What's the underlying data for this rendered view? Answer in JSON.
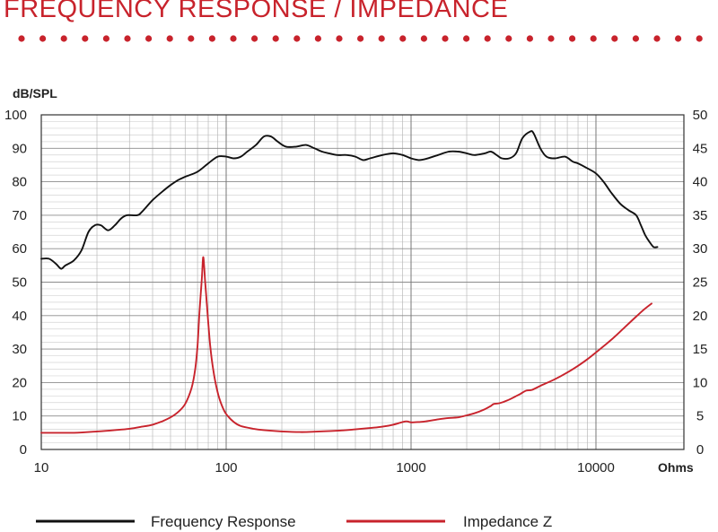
{
  "page": {
    "title": "FREQUENCY RESPONSE / IMPEDANCE",
    "accent_color": "#c8232c"
  },
  "chart_data": {
    "type": "line",
    "xscale": "log",
    "xlim": [
      10,
      20000
    ],
    "grid": true,
    "legend_position": "bottom",
    "y_left": {
      "label": "dB/SPL",
      "range": [
        0,
        100
      ],
      "ticks": [
        0,
        10,
        20,
        30,
        40,
        50,
        60,
        70,
        80,
        90,
        100
      ]
    },
    "y_right": {
      "label": "",
      "range": [
        0,
        50
      ],
      "ticks": [
        0,
        5,
        10,
        15,
        20,
        25,
        30,
        35,
        40,
        45,
        50
      ]
    },
    "x_label": "Ohms",
    "x_ticks": [
      {
        "value": 10,
        "label": "10"
      },
      {
        "value": 100,
        "label": "100"
      },
      {
        "value": 1000,
        "label": "1000"
      },
      {
        "value": 10000,
        "label": "10000"
      }
    ],
    "series": [
      {
        "name": "Frequency Response",
        "axis": "left",
        "color": "#111111",
        "points": [
          [
            10,
            57
          ],
          [
            11,
            57
          ],
          [
            12,
            55.5
          ],
          [
            12.8,
            54
          ],
          [
            13.5,
            55
          ],
          [
            15,
            56.5
          ],
          [
            16.5,
            59.5
          ],
          [
            18,
            65
          ],
          [
            19.5,
            67
          ],
          [
            21,
            67
          ],
          [
            23,
            65.5
          ],
          [
            25,
            67
          ],
          [
            27,
            69
          ],
          [
            29,
            70
          ],
          [
            33,
            70
          ],
          [
            35,
            71
          ],
          [
            40,
            74.5
          ],
          [
            45,
            77
          ],
          [
            50,
            79
          ],
          [
            55,
            80.5
          ],
          [
            60,
            81.5
          ],
          [
            70,
            83
          ],
          [
            80,
            85.5
          ],
          [
            90,
            87.5
          ],
          [
            100,
            87.5
          ],
          [
            110,
            87
          ],
          [
            120,
            87.5
          ],
          [
            130,
            89
          ],
          [
            145,
            91
          ],
          [
            160,
            93.5
          ],
          [
            175,
            93.5
          ],
          [
            190,
            92
          ],
          [
            210,
            90.5
          ],
          [
            240,
            90.5
          ],
          [
            270,
            91
          ],
          [
            300,
            90
          ],
          [
            330,
            89
          ],
          [
            360,
            88.5
          ],
          [
            400,
            88
          ],
          [
            450,
            88
          ],
          [
            500,
            87.5
          ],
          [
            550,
            86.5
          ],
          [
            600,
            87
          ],
          [
            700,
            88
          ],
          [
            800,
            88.5
          ],
          [
            900,
            88
          ],
          [
            1000,
            87
          ],
          [
            1100,
            86.5
          ],
          [
            1200,
            86.8
          ],
          [
            1400,
            88
          ],
          [
            1600,
            89
          ],
          [
            1800,
            89
          ],
          [
            2000,
            88.5
          ],
          [
            2200,
            88
          ],
          [
            2500,
            88.5
          ],
          [
            2700,
            89
          ],
          [
            2900,
            88
          ],
          [
            3100,
            87
          ],
          [
            3400,
            87
          ],
          [
            3700,
            88.5
          ],
          [
            4000,
            93
          ],
          [
            4400,
            95
          ],
          [
            4600,
            94.5
          ],
          [
            5000,
            90
          ],
          [
            5400,
            87.5
          ],
          [
            6000,
            87
          ],
          [
            6800,
            87.5
          ],
          [
            7500,
            86
          ],
          [
            8000,
            85.5
          ],
          [
            9000,
            84
          ],
          [
            10000,
            82.5
          ],
          [
            11000,
            80
          ],
          [
            12000,
            77
          ],
          [
            13500,
            73.5
          ],
          [
            15000,
            71.5
          ],
          [
            16500,
            70
          ],
          [
            17500,
            67
          ],
          [
            18500,
            64
          ],
          [
            19500,
            62
          ],
          [
            20500,
            60.5
          ],
          [
            21500,
            60.5
          ]
        ]
      },
      {
        "name": "Impedance Z",
        "axis": "right",
        "color": "#c8232c",
        "points": [
          [
            10,
            2.5
          ],
          [
            15,
            2.5
          ],
          [
            20,
            2.7
          ],
          [
            25,
            2.9
          ],
          [
            30,
            3.1
          ],
          [
            35,
            3.4
          ],
          [
            40,
            3.7
          ],
          [
            45,
            4.2
          ],
          [
            50,
            4.8
          ],
          [
            55,
            5.6
          ],
          [
            60,
            6.8
          ],
          [
            65,
            9.2
          ],
          [
            68,
            12
          ],
          [
            70,
            15.5
          ],
          [
            71.5,
            20
          ],
          [
            73,
            23.5
          ],
          [
            74,
            26
          ],
          [
            75,
            28.7
          ],
          [
            76,
            27.5
          ],
          [
            77,
            25
          ],
          [
            78.5,
            22
          ],
          [
            80,
            19
          ],
          [
            82,
            15.5
          ],
          [
            85,
            12
          ],
          [
            90,
            8.5
          ],
          [
            95,
            6.5
          ],
          [
            100,
            5.3
          ],
          [
            110,
            4.1
          ],
          [
            120,
            3.5
          ],
          [
            140,
            3.1
          ],
          [
            160,
            2.9
          ],
          [
            200,
            2.7
          ],
          [
            250,
            2.6
          ],
          [
            300,
            2.65
          ],
          [
            400,
            2.8
          ],
          [
            500,
            3.0
          ],
          [
            600,
            3.2
          ],
          [
            700,
            3.4
          ],
          [
            800,
            3.7
          ],
          [
            900,
            4.1
          ],
          [
            950,
            4.2
          ],
          [
            1000,
            4.05
          ],
          [
            1100,
            4.1
          ],
          [
            1200,
            4.2
          ],
          [
            1400,
            4.5
          ],
          [
            1600,
            4.7
          ],
          [
            1800,
            4.8
          ],
          [
            2000,
            5.1
          ],
          [
            2200,
            5.4
          ],
          [
            2500,
            6.0
          ],
          [
            2700,
            6.5
          ],
          [
            2800,
            6.8
          ],
          [
            3000,
            6.9
          ],
          [
            3300,
            7.3
          ],
          [
            3600,
            7.8
          ],
          [
            3900,
            8.3
          ],
          [
            4200,
            8.8
          ],
          [
            4500,
            8.9
          ],
          [
            5000,
            9.5
          ],
          [
            6000,
            10.5
          ],
          [
            7000,
            11.5
          ],
          [
            8000,
            12.5
          ],
          [
            9000,
            13.5
          ],
          [
            10000,
            14.5
          ],
          [
            12000,
            16.3
          ],
          [
            14000,
            18.0
          ],
          [
            16000,
            19.5
          ],
          [
            18000,
            20.8
          ],
          [
            20000,
            21.8
          ]
        ]
      }
    ]
  }
}
